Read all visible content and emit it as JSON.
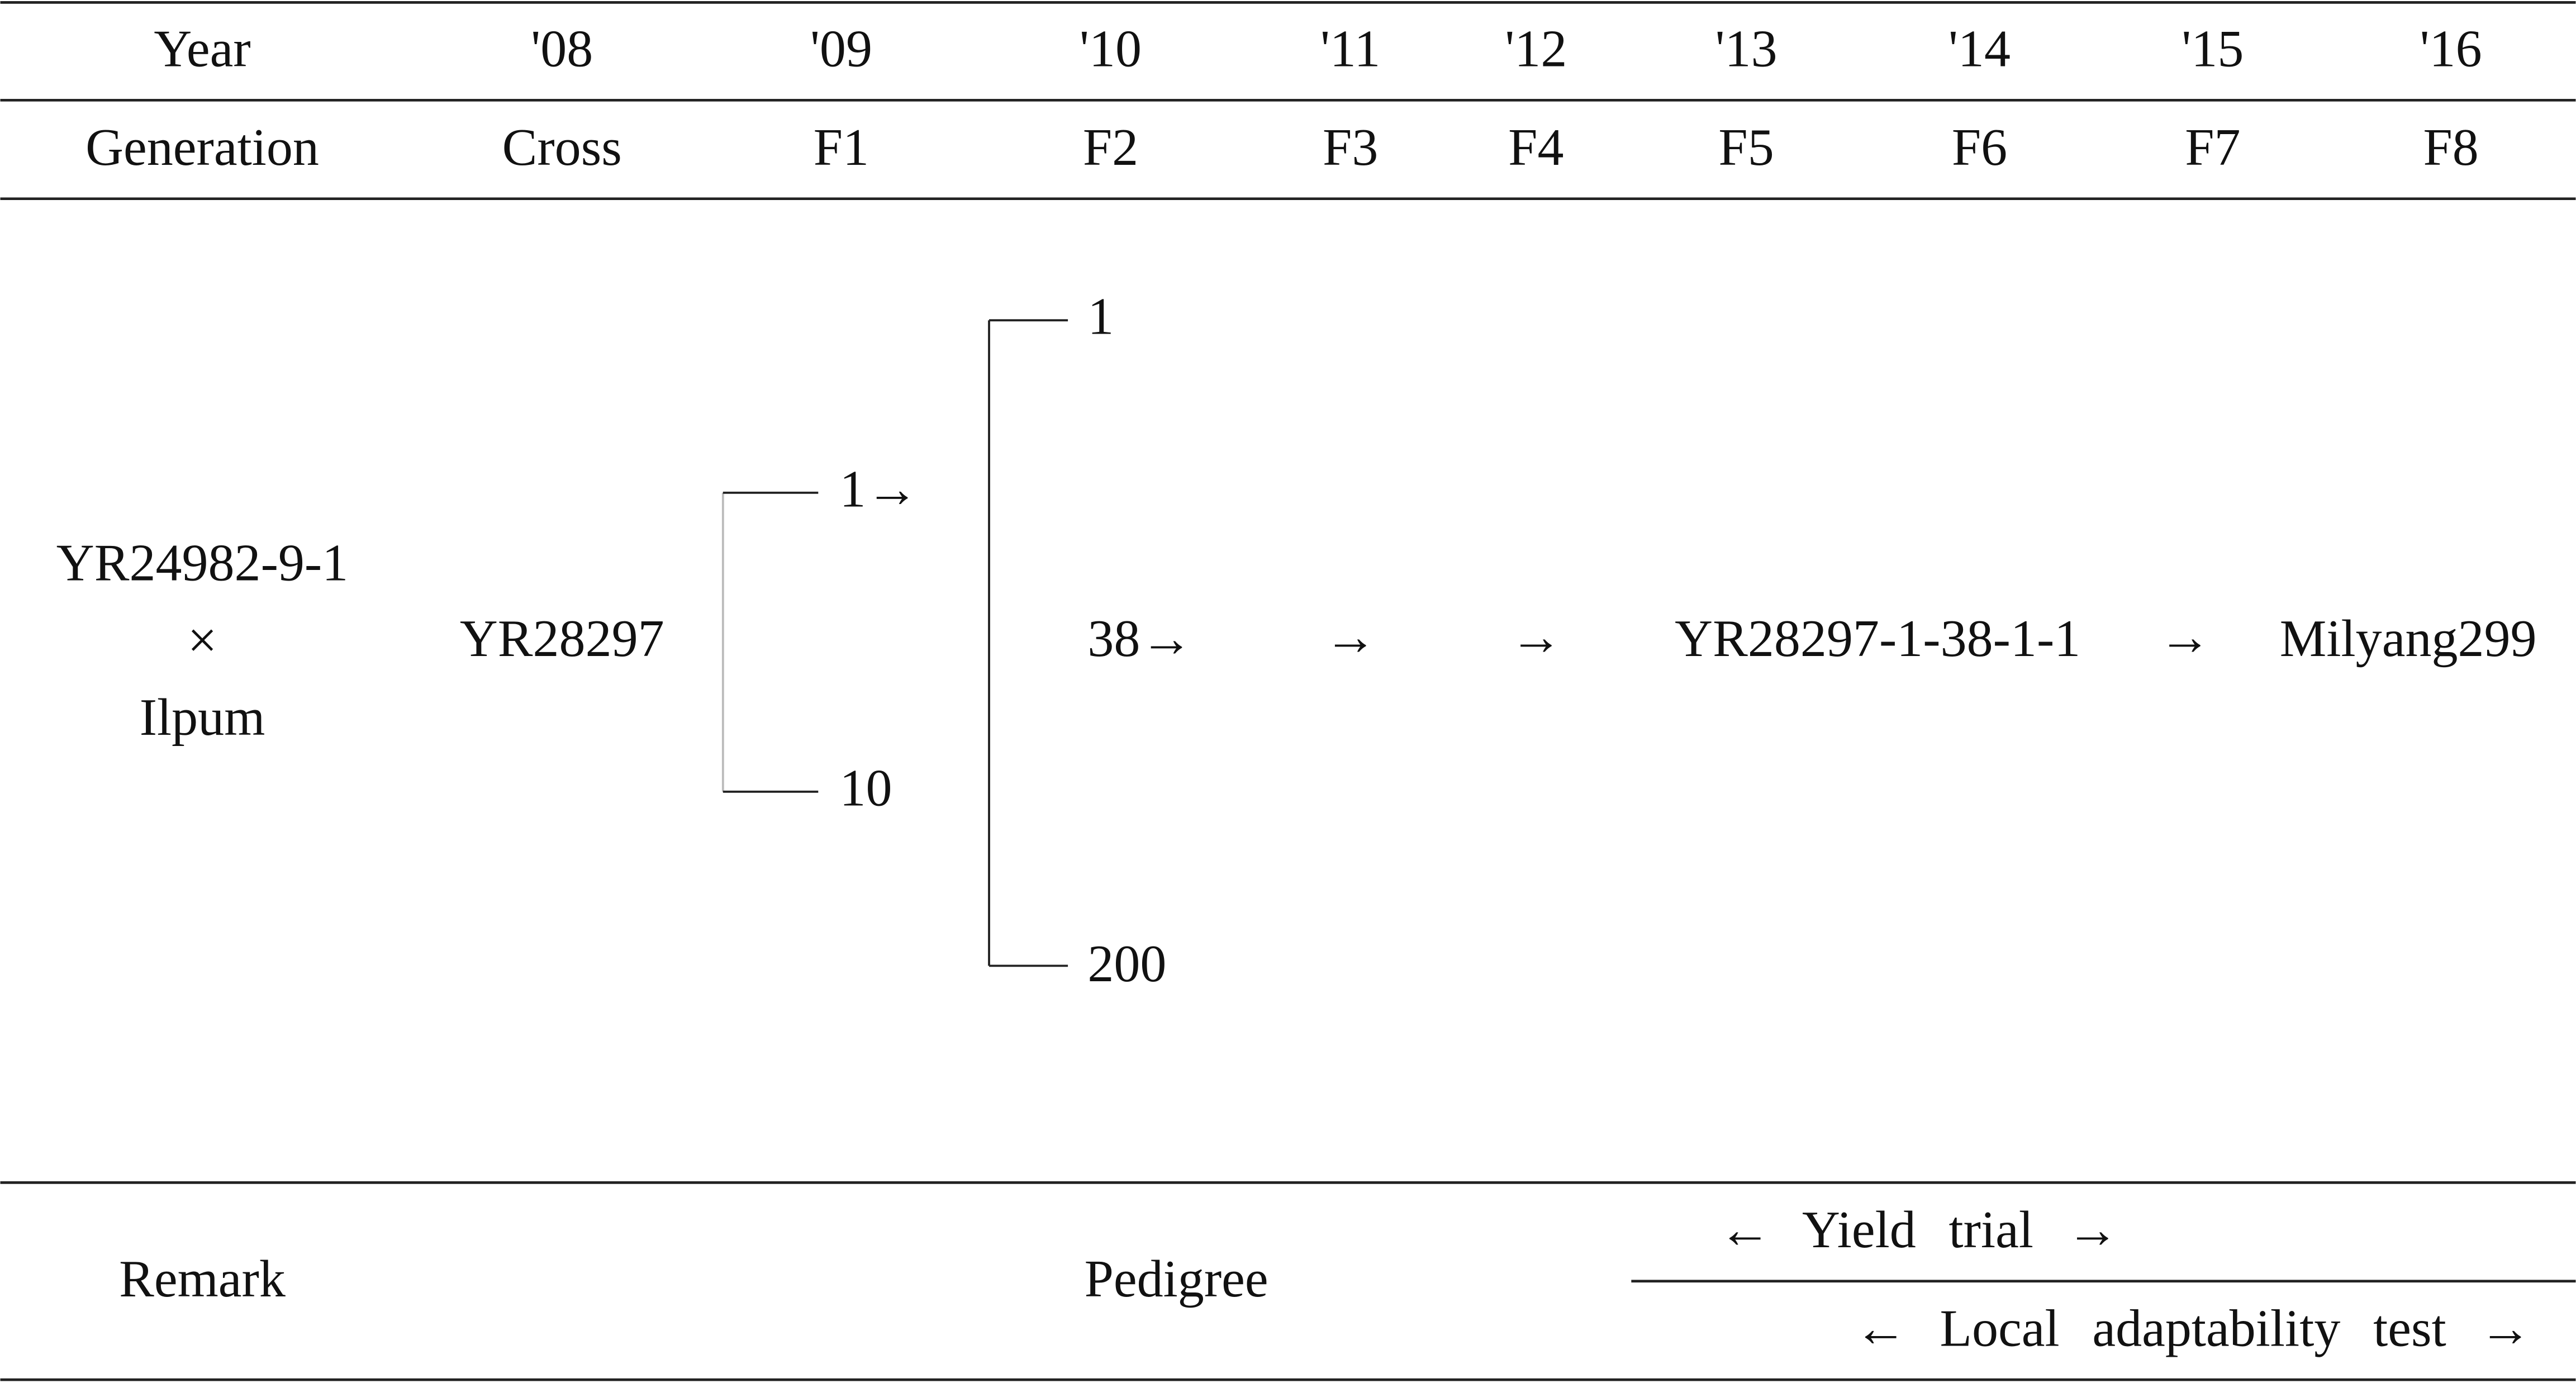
{
  "table": {
    "header": {
      "year_label": "Year",
      "years": [
        "'08",
        "'09",
        "'10",
        "'11",
        "'12",
        "'13",
        "'14",
        "'15",
        "'16"
      ],
      "generation_label": "Generation",
      "generations": [
        "Cross",
        "F1",
        "F2",
        "F3",
        "F4",
        "F5",
        "F6",
        "F7",
        "F8"
      ]
    },
    "pedigree": {
      "parents": [
        "YR24982-9-1",
        "×",
        "Ilpum"
      ],
      "cross": "YR28297",
      "f1": [
        "1→",
        "10"
      ],
      "f2": [
        "1",
        "38→",
        "200"
      ],
      "f3": "→",
      "f4": "→",
      "line": "YR28297-1-38-1-1",
      "f7": "→",
      "variety": "Milyang299"
    },
    "remarks": {
      "label": "Remark",
      "pedigree": "Pedigree",
      "yield_trial": "← Yield trial →",
      "local_test": "← Local adaptability test →"
    }
  }
}
